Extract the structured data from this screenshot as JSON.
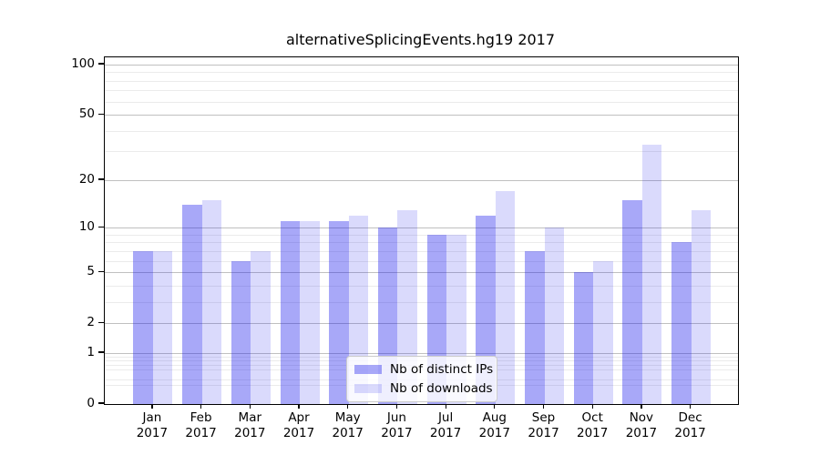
{
  "chart_data": {
    "type": "bar",
    "title": "alternativeSplicingEvents.hg19 2017",
    "x_year": "2017",
    "x_tick_months": [
      "Jan",
      "Feb",
      "Mar",
      "Apr",
      "May",
      "Jun",
      "Jul",
      "Aug",
      "Sep",
      "Oct",
      "Nov",
      "Dec"
    ],
    "categories": [
      "Jan 2017",
      "Feb 2017",
      "Mar 2017",
      "Apr 2017",
      "May 2017",
      "Jun 2017",
      "Jul 2017",
      "Aug 2017",
      "Sep 2017",
      "Oct 2017",
      "Nov 2017",
      "Dec 2017"
    ],
    "series": [
      {
        "name": "Nb of distinct IPs",
        "color": "rgba(20,20,235,0.37)",
        "solid_color": "#a8a8f8",
        "values": [
          7,
          14,
          6,
          11,
          11,
          10,
          9,
          12,
          7,
          5,
          15,
          8
        ]
      },
      {
        "name": "Nb of downloads",
        "color": "rgba(20,20,235,0.155)",
        "solid_color": "#dbdbfc",
        "values": [
          7,
          15,
          7,
          11,
          12,
          13,
          9,
          17,
          10,
          6,
          33,
          13
        ]
      }
    ],
    "y_axis": {
      "scale": "log1p",
      "ticks": [
        0,
        1,
        2,
        5,
        10,
        20,
        50,
        100
      ],
      "tick_labels": [
        "0",
        "1",
        "2",
        "5",
        "10",
        "20",
        "50",
        "100"
      ],
      "minor_ticks": [
        0.3,
        0.4,
        0.6,
        0.7,
        0.8,
        0.9,
        3,
        4,
        6,
        7,
        8,
        9,
        30,
        40,
        60,
        70,
        80,
        90
      ],
      "range": [
        0,
        110.5
      ]
    },
    "legend": {
      "position": "lower-center",
      "entries": [
        "Nb of distinct IPs",
        "Nb of downloads"
      ]
    },
    "grid": true,
    "colors": {
      "major_grid": "#c0c0c0",
      "minor_grid": "#ebebeb",
      "axis_frame": "#000000",
      "background": "#ffffff"
    }
  }
}
